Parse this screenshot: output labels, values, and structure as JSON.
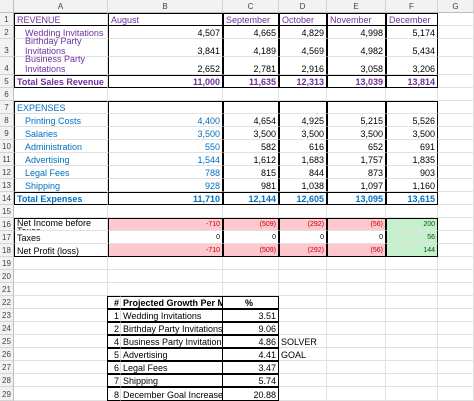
{
  "columns": [
    "A",
    "B",
    "C",
    "D",
    "E",
    "F",
    "G"
  ],
  "rows": [
    "1",
    "2",
    "3",
    "4",
    "5",
    "6",
    "7",
    "8",
    "9",
    "10",
    "11",
    "12",
    "13",
    "14",
    "15",
    "16",
    "17",
    "18",
    "19",
    "20",
    "21",
    "22",
    "23",
    "24",
    "25",
    "26",
    "27",
    "28",
    "29"
  ],
  "headers": {
    "revenue": "REVENUE",
    "months": [
      "August",
      "September",
      "October",
      "November",
      "December"
    ]
  },
  "revenue_rows": [
    {
      "label": "Wedding Invitations",
      "values": [
        "4,507",
        "4,665",
        "4,829",
        "4,998",
        "5,174"
      ]
    },
    {
      "label": "Birthday Party Invitations",
      "values": [
        "3,841",
        "4,189",
        "4,569",
        "4,982",
        "5,434"
      ]
    },
    {
      "label": "Business Party Invitations",
      "values": [
        "2,652",
        "2,781",
        "2,916",
        "3,058",
        "3,206"
      ]
    }
  ],
  "total_sales": {
    "label": "Total Sales Revenue",
    "values": [
      "11,000",
      "11,635",
      "12,313",
      "13,039",
      "13,814"
    ]
  },
  "expenses_header": "EXPENSES",
  "expense_rows": [
    {
      "label": "Printing Costs",
      "values": [
        "4,400",
        "4,654",
        "4,925",
        "5,215",
        "5,526"
      ]
    },
    {
      "label": "Salaries",
      "values": [
        "3,500",
        "3,500",
        "3,500",
        "3,500",
        "3,500"
      ]
    },
    {
      "label": "Administration",
      "values": [
        "550",
        "582",
        "616",
        "652",
        "691"
      ]
    },
    {
      "label": "Advertising",
      "values": [
        "1,544",
        "1,612",
        "1,683",
        "1,757",
        "1,835"
      ]
    },
    {
      "label": "Legal Fees",
      "values": [
        "788",
        "815",
        "844",
        "873",
        "903"
      ]
    },
    {
      "label": "Shipping",
      "values": [
        "928",
        "981",
        "1,038",
        "1,097",
        "1,160"
      ]
    }
  ],
  "total_expenses": {
    "label": "Total Expenses",
    "values": [
      "11,710",
      "12,144",
      "12,605",
      "13,095",
      "13,615"
    ]
  },
  "net_before_taxes": {
    "label": "Net Income before Taxes",
    "values": [
      "-710",
      "(509)",
      "(292)",
      "(56)",
      "200"
    ]
  },
  "taxes": {
    "label": "Taxes",
    "values": [
      "0",
      "0",
      "0",
      "0",
      "56"
    ]
  },
  "net_profit": {
    "label": "Net Profit (loss)",
    "values": [
      "-710",
      "(509)",
      "(292)",
      "(56)",
      "144"
    ]
  },
  "growth_table": {
    "header_num": "#",
    "header_label": "Projected Growth Per Month",
    "header_pct": "%",
    "rows": [
      {
        "num": "1",
        "label": "Wedding Invitations",
        "pct": "3.51",
        "note": ""
      },
      {
        "num": "2",
        "label": "Birthday Party Invitations",
        "pct": "9.06",
        "note": ""
      },
      {
        "num": "4",
        "label": "Business Party Invitations",
        "pct": "4.86",
        "note": "SOLVER"
      },
      {
        "num": "5",
        "label": "Advertising",
        "pct": "4.41",
        "note": "GOAL"
      },
      {
        "num": "6",
        "label": "Legal Fees",
        "pct": "3.47",
        "note": ""
      },
      {
        "num": "7",
        "label": "Shipping",
        "pct": "5.74",
        "note": ""
      },
      {
        "num": "8",
        "label": "December Goal Increase",
        "pct": "20.88",
        "note": ""
      }
    ]
  },
  "colors": {
    "label_purple": "#7030a0",
    "value_blue": "#0070c0",
    "loss_red": "#c00000",
    "loss_fill": "#ffc7ce",
    "gain_fill": "#c6efce",
    "gain_green": "#006100"
  }
}
